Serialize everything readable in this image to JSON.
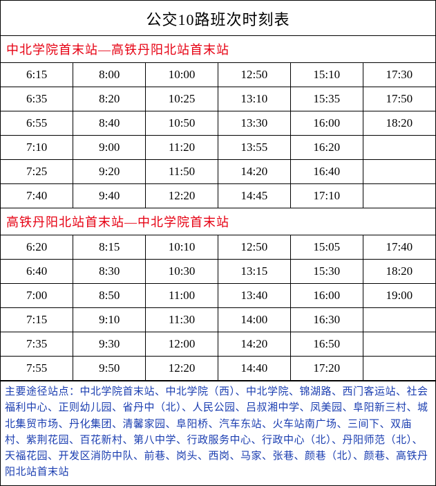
{
  "colors": {
    "text": "#000000",
    "accent": "#e60012",
    "accent2": "#1a3db0",
    "border": "#000000",
    "background": "#ffffff"
  },
  "title": "公交10路班次时刻表",
  "sections": [
    {
      "header": "中北学院首末站—高铁丹阳北站首末站",
      "rows": [
        [
          "6:15",
          "8:00",
          "10:00",
          "12:50",
          "15:10",
          "17:30"
        ],
        [
          "6:35",
          "8:20",
          "10:25",
          "13:10",
          "15:35",
          "17:50"
        ],
        [
          "6:55",
          "8:40",
          "10:50",
          "13:30",
          "16:00",
          "18:20"
        ],
        [
          "7:10",
          "9:00",
          "11:20",
          "13:55",
          "16:20",
          ""
        ],
        [
          "7:25",
          "9:20",
          "11:50",
          "14:20",
          "16:40",
          ""
        ],
        [
          "7:40",
          "9:40",
          "12:20",
          "14:45",
          "17:10",
          ""
        ]
      ]
    },
    {
      "header": "高铁丹阳北站首末站—中北学院首末站",
      "rows": [
        [
          "6:20",
          "8:15",
          "10:10",
          "12:50",
          "15:05",
          "17:40"
        ],
        [
          "6:40",
          "8:30",
          "10:30",
          "13:15",
          "15:30",
          "18:20"
        ],
        [
          "7:00",
          "8:50",
          "11:00",
          "13:40",
          "16:00",
          "19:00"
        ],
        [
          "7:15",
          "9:10",
          "11:30",
          "14:00",
          "16:30",
          ""
        ],
        [
          "7:35",
          "9:30",
          "12:00",
          "14:20",
          "16:50",
          ""
        ],
        [
          "7:55",
          "9:50",
          "12:20",
          "14:40",
          "17:20",
          ""
        ]
      ]
    }
  ],
  "stops": {
    "label": "主要途径站点：",
    "text": "中北学院首末站、中北学院（西）、中北学院、锦湖路、西门客运站、社会福利中心、正则幼儿园、省丹中（北）、人民公园、吕叔湘中学、凤美园、阜阳新三村、城北集贸市场、丹化集团、清馨家园、阜阳桥、汽车东站、火车站南广场、三间下、双庙村、紫荆花园、百花新村、第八中学、行政服务中心、行政中心（北）、丹阳师范（北）、天福花园、开发区消防中队、前巷、岗头、西岗、马家、张巷、颜巷（北）、颜巷、高铁丹阳北站首末站"
  }
}
